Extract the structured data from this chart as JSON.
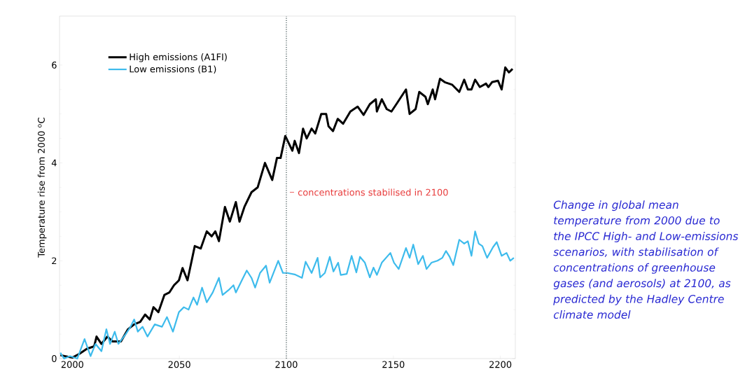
{
  "chart_data": {
    "type": "line",
    "ylabel": "Temperature rise from 2000 $^{o}$C",
    "xlim": [
      1994,
      2207
    ],
    "ylim": [
      0,
      7
    ],
    "xticks": [
      2000,
      2050,
      2100,
      2150,
      2200
    ],
    "yticks": [
      0,
      2,
      4,
      6
    ],
    "legend": "top left",
    "marker": "none",
    "line_style": "solid",
    "series": [
      {
        "name": "High emissions (A1FI)",
        "color": "#000000",
        "x": [
          1994.4,
          2000,
          2003.4,
          2006.8,
          2010.2,
          2011.3,
          2013.6,
          2016.4,
          2018.7,
          2022.7,
          2026,
          2028.9,
          2031.7,
          2034,
          2036.2,
          2037.9,
          2040.2,
          2043,
          2045.3,
          2047.5,
          2049.8,
          2051.5,
          2053.8,
          2057.2,
          2060,
          2062.8,
          2065.1,
          2066.8,
          2068.5,
          2071.3,
          2073.6,
          2076.4,
          2078.1,
          2080.4,
          2083.7,
          2086.6,
          2090,
          2093.4,
          2095.6,
          2097.3,
          2099.5,
          2102.8,
          2103.9,
          2105.9,
          2107.8,
          2109.5,
          2111.8,
          2113.5,
          2116.3,
          2118.6,
          2119.7,
          2121.8,
          2124,
          2126.5,
          2129.9,
          2133.3,
          2136.1,
          2139,
          2141.8,
          2142.3,
          2144.6,
          2146.9,
          2149.1,
          2151.4,
          2155.9,
          2157.6,
          2160.4,
          2162.1,
          2165,
          2166.1,
          2168.4,
          2169.5,
          2171.8,
          2174,
          2177.4,
          2180.8,
          2183.1,
          2184.8,
          2186.5,
          2188.2,
          2190.4,
          2193.3,
          2194.4,
          2196.1,
          2198.9,
          2200.6,
          2202.3,
          2204,
          2205.7
        ],
        "values": [
          0.07,
          0.02,
          0.1,
          0.2,
          0.25,
          0.45,
          0.3,
          0.45,
          0.35,
          0.35,
          0.6,
          0.7,
          0.75,
          0.9,
          0.8,
          1.05,
          0.95,
          1.3,
          1.35,
          1.5,
          1.6,
          1.85,
          1.6,
          2.3,
          2.25,
          2.6,
          2.5,
          2.6,
          2.4,
          3.1,
          2.8,
          3.2,
          2.8,
          3.1,
          3.4,
          3.5,
          4.0,
          3.65,
          4.1,
          4.1,
          4.55,
          4.25,
          4.45,
          4.2,
          4.7,
          4.5,
          4.7,
          4.6,
          5.0,
          5.0,
          4.75,
          4.65,
          4.9,
          4.8,
          5.05,
          5.15,
          4.98,
          5.2,
          5.3,
          5.05,
          5.3,
          5.1,
          5.05,
          5.2,
          5.5,
          5.0,
          5.1,
          5.45,
          5.35,
          5.2,
          5.5,
          5.3,
          5.72,
          5.65,
          5.6,
          5.45,
          5.7,
          5.5,
          5.5,
          5.7,
          5.55,
          5.62,
          5.55,
          5.65,
          5.68,
          5.5,
          5.95,
          5.85,
          5.92
        ]
      },
      {
        "name": "Low emissions (B1)",
        "color": "#3dbbec",
        "x": [
          1994.4,
          1996.1,
          1998.9,
          2002.3,
          2005.7,
          2008.5,
          2010.8,
          2013.6,
          2015.9,
          2017.6,
          2019.8,
          2021.5,
          2024.9,
          2027.2,
          2028.9,
          2030.6,
          2032.8,
          2035.1,
          2038.5,
          2041.9,
          2044.2,
          2047,
          2049.8,
          2052.1,
          2054.3,
          2056.6,
          2058.3,
          2060.6,
          2062.8,
          2065.6,
          2068.5,
          2070.2,
          2073,
          2075.3,
          2076.4,
          2079.2,
          2081.5,
          2083.7,
          2085.4,
          2087.7,
          2090.5,
          2092.2,
          2096.2,
          2098.4,
          2100.5,
          2103.9,
          2107.3,
          2109,
          2111.8,
          2114.6,
          2115.8,
          2118,
          2120.3,
          2122,
          2124.2,
          2125.4,
          2128.2,
          2130.5,
          2132.7,
          2134.4,
          2136.7,
          2139,
          2140.7,
          2142.3,
          2144.6,
          2148.6,
          2150.3,
          2152.5,
          2155.9,
          2157.6,
          2159.3,
          2161.6,
          2163.8,
          2165.5,
          2167.8,
          2170.6,
          2172.9,
          2174.6,
          2176.3,
          2178,
          2180.8,
          2183.1,
          2184.8,
          2186.5,
          2188.2,
          2189.9,
          2191.6,
          2193.8,
          2196.6,
          2198.3,
          2200.6,
          2202.9,
          2204.6,
          2206.3
        ],
        "values": [
          0.12,
          0.0,
          0.05,
          0.0,
          0.4,
          0.05,
          0.3,
          0.15,
          0.6,
          0.3,
          0.55,
          0.3,
          0.5,
          0.65,
          0.8,
          0.55,
          0.65,
          0.45,
          0.7,
          0.65,
          0.85,
          0.55,
          0.95,
          1.05,
          1.0,
          1.25,
          1.1,
          1.45,
          1.15,
          1.35,
          1.65,
          1.3,
          1.4,
          1.5,
          1.35,
          1.6,
          1.8,
          1.65,
          1.45,
          1.75,
          1.9,
          1.55,
          2.0,
          1.75,
          1.75,
          1.72,
          1.65,
          1.98,
          1.75,
          2.06,
          1.66,
          1.75,
          2.08,
          1.78,
          1.96,
          1.71,
          1.73,
          2.1,
          1.76,
          2.08,
          1.96,
          1.66,
          1.86,
          1.71,
          1.96,
          2.16,
          1.96,
          1.83,
          2.26,
          2.06,
          2.33,
          1.93,
          2.1,
          1.83,
          1.96,
          2.0,
          2.06,
          2.2,
          2.08,
          1.91,
          2.43,
          2.35,
          2.4,
          2.1,
          2.6,
          2.35,
          2.3,
          2.06,
          2.28,
          2.38,
          2.1,
          2.16,
          2.0,
          2.06
        ]
      }
    ],
    "ref_lines": [
      {
        "axis": "x",
        "value": 2100,
        "color": "#33484a",
        "line_style": "dotted"
      }
    ],
    "annotations": [
      {
        "text": "concentrations stabilised in 2100",
        "x": 2100,
        "y": 3.4
      },
      "Change in global mean temperature from 2000 due to the IPCC High- and Low-emissions scenarios, with stabilisation of concentrations of greenhouse gases (and aerosols) at 2100, as predicted by the Hadley Centre climate model"
    ]
  }
}
